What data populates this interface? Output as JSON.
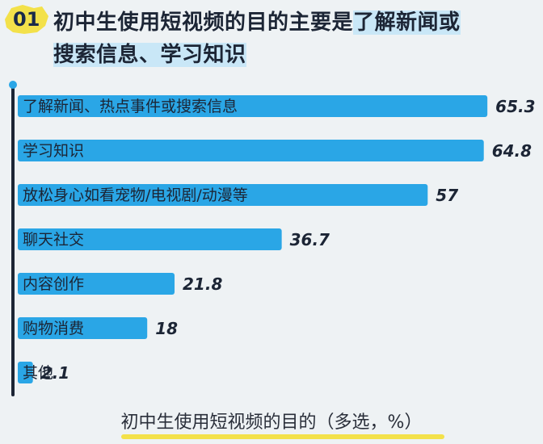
{
  "header": {
    "badge_number": "01",
    "title_plain": "初中生使用短视频的目的主要是",
    "title_highlight_1": "了解新闻或",
    "title_highlight_2": "搜索信息、学习知识"
  },
  "colors": {
    "bar": "#2aa6e6",
    "badge": "#f3e14a",
    "highlight": "#c9e7f7"
  },
  "chart_data": {
    "type": "bar",
    "orientation": "horizontal",
    "categories": [
      "了解新闻、热点事件或搜索信息",
      "学习知识",
      "放松身心如看宠物/电视剧/动漫等",
      "聊天社交",
      "内容创作",
      "购物消费",
      "其他"
    ],
    "values": [
      65.3,
      64.8,
      57,
      36.7,
      21.8,
      18,
      2.1
    ],
    "value_labels": [
      "65.3",
      "64.8",
      "57",
      "36.7",
      "21.8",
      "18",
      "2.1"
    ],
    "xlim": [
      0,
      100
    ],
    "grid": false
  },
  "caption": "初中生使用短视频的目的（多选，%）"
}
